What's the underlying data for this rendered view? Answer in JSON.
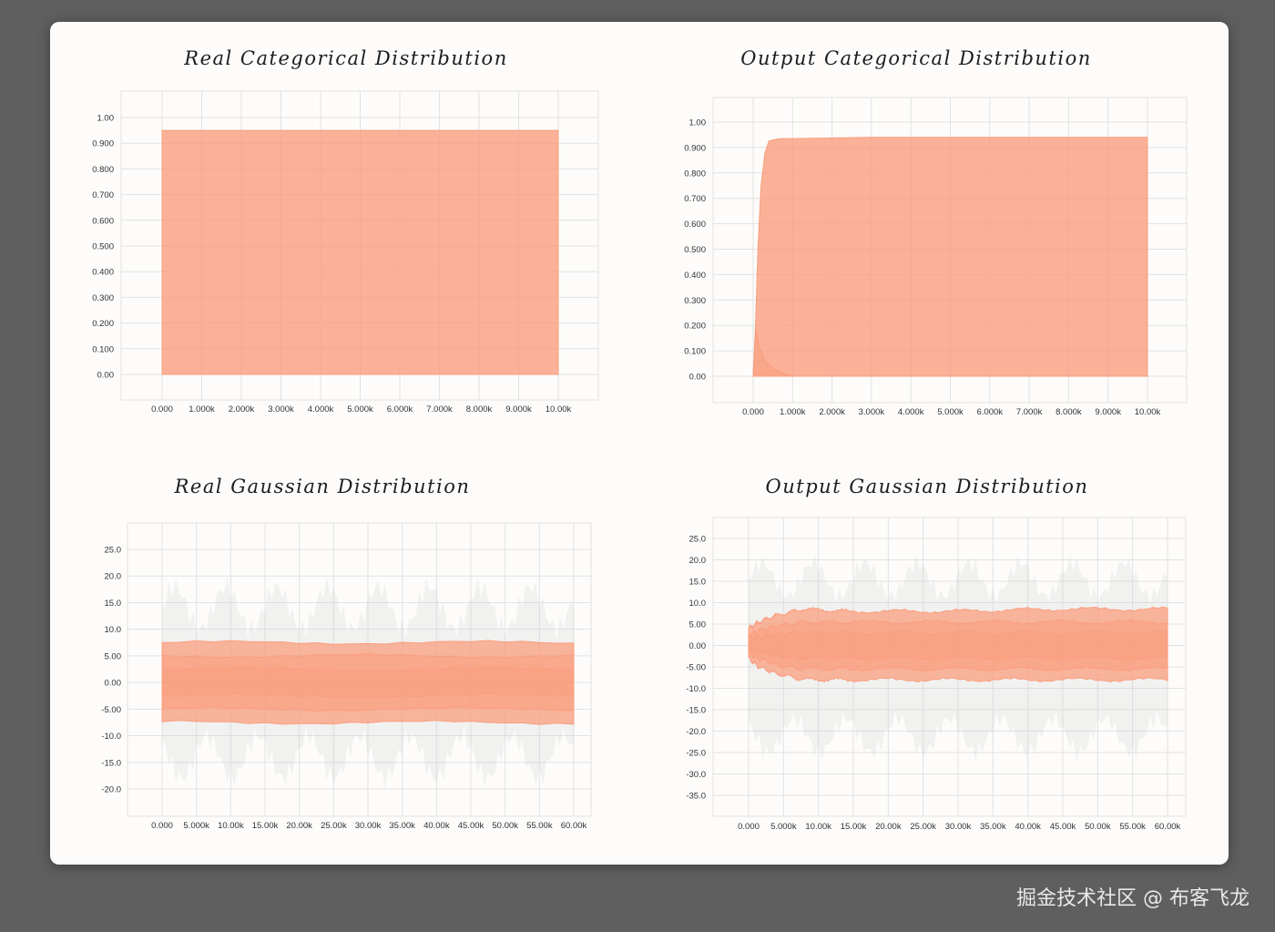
{
  "watermark": "掘金技术社区 @ 布客飞龙",
  "accent_color": "#fa9e7f",
  "chart_data": [
    {
      "type": "area",
      "title": "Real Categorical Distribution",
      "x_ticks": [
        "0.000",
        "1.000k",
        "2.000k",
        "3.000k",
        "4.000k",
        "5.000k",
        "6.000k",
        "7.000k",
        "8.000k",
        "9.000k",
        "10.00k"
      ],
      "y_ticks": [
        "1.00",
        "0.900",
        "0.800",
        "0.700",
        "0.600",
        "0.500",
        "0.400",
        "0.300",
        "0.200",
        "0.100",
        "0.00"
      ],
      "xlim": [
        0,
        10000
      ],
      "ylim": [
        0,
        1.0
      ],
      "series": [
        {
          "x": [
            0,
            10000
          ],
          "upper": [
            0.95,
            0.95
          ],
          "lower": [
            0.0,
            0.0
          ]
        }
      ]
    },
    {
      "type": "area",
      "title": "Output Categorical Distribution",
      "x_ticks": [
        "0.000",
        "1.000k",
        "2.000k",
        "3.000k",
        "4.000k",
        "5.000k",
        "6.000k",
        "7.000k",
        "8.000k",
        "9.000k",
        "10.00k"
      ],
      "y_ticks": [
        "1.00",
        "0.900",
        "0.800",
        "0.700",
        "0.600",
        "0.500",
        "0.400",
        "0.300",
        "0.200",
        "0.100",
        "0.00"
      ],
      "xlim": [
        0,
        10000
      ],
      "ylim": [
        0,
        1.0
      ],
      "series": [
        {
          "x": [
            0,
            60,
            120,
            200,
            300,
            400,
            500,
            700,
            1000,
            3000,
            6000,
            10000
          ],
          "upper": [
            0.0,
            0.2,
            0.5,
            0.75,
            0.88,
            0.925,
            0.93,
            0.935,
            0.935,
            0.94,
            0.94,
            0.94
          ],
          "lower": [
            0.0,
            0.0,
            0.0,
            0.0,
            0.0,
            0.0,
            0.0,
            0.0,
            0.0,
            0.0,
            0.0,
            0.0
          ]
        },
        {
          "x": [
            0,
            60,
            150,
            300,
            500,
            800,
            1000,
            10000
          ],
          "upper": [
            0.0,
            0.19,
            0.12,
            0.06,
            0.03,
            0.01,
            0.0,
            0.0
          ],
          "lower": [
            0.0,
            0.0,
            0.0,
            0.0,
            0.0,
            0.0,
            0.0,
            0.0
          ]
        }
      ]
    },
    {
      "type": "area",
      "title": "Real Gaussian Distribution",
      "x_ticks": [
        "0.000",
        "5.000k",
        "10.00k",
        "15.00k",
        "20.00k",
        "25.00k",
        "30.00k",
        "35.00k",
        "40.00k",
        "45.00k",
        "50.00k",
        "55.00k",
        "60.00k"
      ],
      "y_ticks": [
        "25.0",
        "20.0",
        "15.0",
        "10.0",
        "5.00",
        "0.00",
        "-5.00",
        "-10.0",
        "-15.0",
        "-20.0"
      ],
      "xlim": [
        0,
        62000
      ],
      "ylim": [
        -20,
        25
      ],
      "series": [
        {
          "x": [
            0,
            62000
          ],
          "upper": [
            7.5,
            7.5
          ],
          "lower": [
            -7.5,
            -7.5
          ]
        },
        {
          "x": [
            0,
            62000
          ],
          "upper": [
            5.0,
            5.0
          ],
          "lower": [
            -5.0,
            -5.0
          ]
        },
        {
          "x": [
            0,
            62000
          ],
          "upper": [
            2.5,
            2.5
          ],
          "lower": [
            -2.5,
            -2.5
          ]
        }
      ]
    },
    {
      "type": "area",
      "title": "Output Gaussian Distribution",
      "x_ticks": [
        "0.000",
        "5.000k",
        "10.00k",
        "15.00k",
        "20.00k",
        "25.00k",
        "30.00k",
        "35.00k",
        "40.00k",
        "45.00k",
        "50.00k",
        "55.00k",
        "60.00k"
      ],
      "y_ticks": [
        "25.0",
        "20.0",
        "15.0",
        "10.0",
        "5.00",
        "0.00",
        "-5.00",
        "-10.0",
        "-15.0",
        "-20.0",
        "-25.0",
        "-30.0",
        "-35.0"
      ],
      "xlim": [
        0,
        62000
      ],
      "ylim": [
        -35,
        25
      ],
      "series": [
        {
          "x": [
            0,
            1500,
            4000,
            8000,
            15000,
            30000,
            45000,
            62000
          ],
          "upper": [
            4.0,
            5.5,
            7.0,
            8.5,
            8.0,
            8.0,
            8.5,
            8.5
          ],
          "lower": [
            -3.0,
            -5.0,
            -6.5,
            -8.0,
            -8.0,
            -8.0,
            -8.0,
            -8.0
          ]
        },
        {
          "x": [
            0,
            1500,
            4000,
            8000,
            15000,
            30000,
            45000,
            62000
          ],
          "upper": [
            2.5,
            3.5,
            4.5,
            5.5,
            5.5,
            5.5,
            5.5,
            5.5
          ],
          "lower": [
            -2.0,
            -3.0,
            -4.5,
            -5.5,
            -5.5,
            -5.5,
            -5.5,
            -5.5
          ]
        },
        {
          "x": [
            0,
            1500,
            4000,
            8000,
            15000,
            30000,
            45000,
            62000
          ],
          "upper": [
            1.5,
            2.0,
            2.5,
            3.0,
            3.0,
            3.0,
            3.0,
            3.0
          ],
          "lower": [
            -1.0,
            -1.5,
            -2.5,
            -3.0,
            -3.0,
            -3.0,
            -3.0,
            -3.0
          ]
        }
      ]
    }
  ]
}
